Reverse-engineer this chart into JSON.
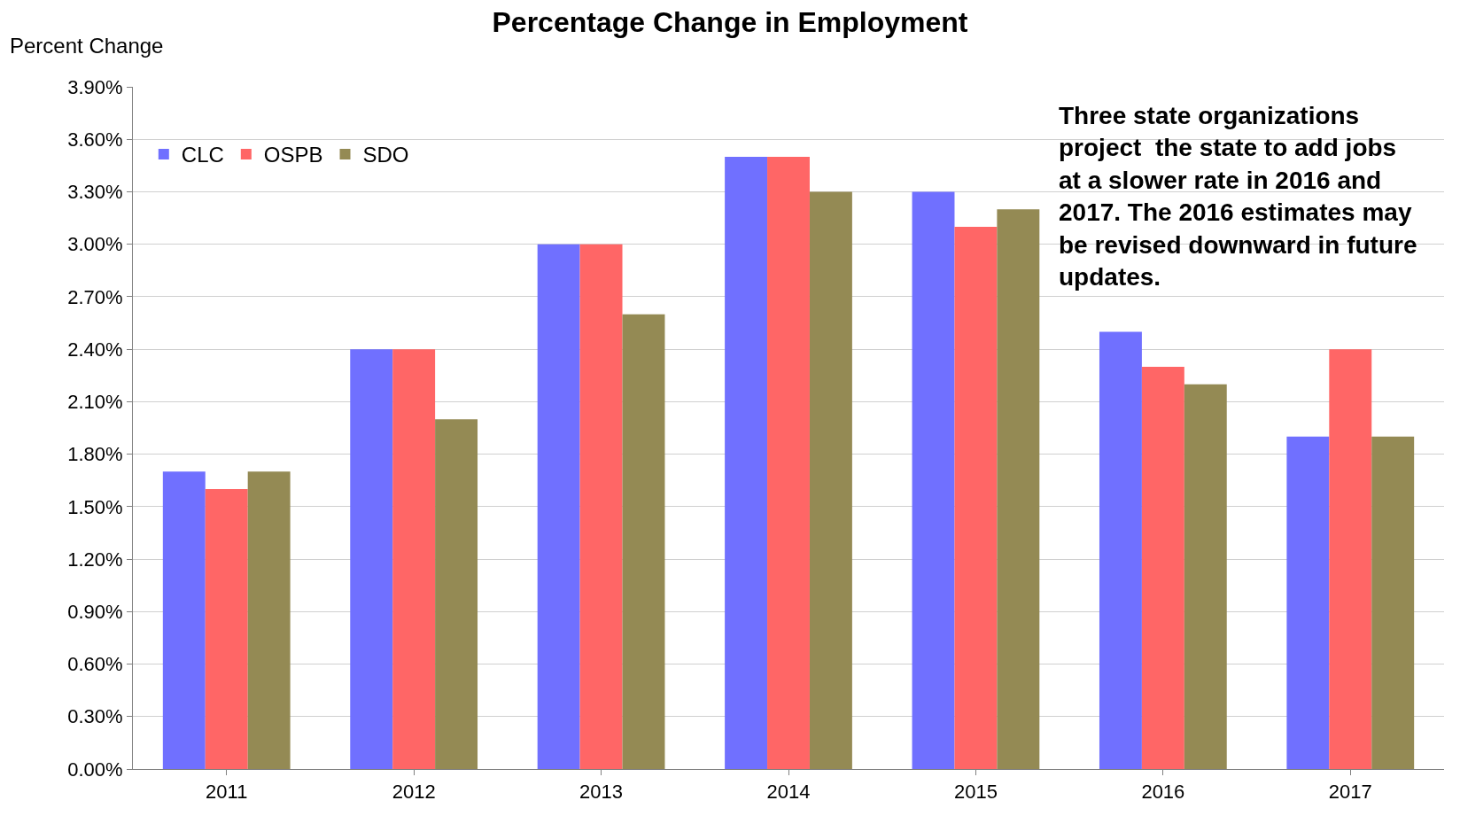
{
  "chart_data": {
    "type": "bar",
    "title": "Percentage Change in Employment",
    "ylabel": "Percent Change",
    "categories": [
      "2011",
      "2012",
      "2013",
      "2014",
      "2015",
      "2016",
      "2017"
    ],
    "series": [
      {
        "name": "CLC",
        "color": "#7070ff",
        "values": [
          1.7,
          2.4,
          3.0,
          3.5,
          3.3,
          2.5,
          1.9
        ]
      },
      {
        "name": "OSPB",
        "color": "#ff6666",
        "values": [
          1.6,
          2.4,
          3.0,
          3.5,
          3.1,
          2.3,
          2.4
        ]
      },
      {
        "name": "SDO",
        "color": "#948a54",
        "values": [
          1.7,
          2.0,
          2.6,
          3.3,
          3.2,
          2.2,
          1.9
        ]
      }
    ],
    "ylim": [
      0,
      3.9
    ],
    "yticks": [
      {
        "value": 0,
        "label": "0.00%"
      },
      {
        "value": 0.3,
        "label": "0.30%"
      },
      {
        "value": 0.6,
        "label": "0.60%"
      },
      {
        "value": 0.9,
        "label": "0.90%"
      },
      {
        "value": 1.2,
        "label": "1.20%"
      },
      {
        "value": 1.5,
        "label": "1.50%"
      },
      {
        "value": 1.8,
        "label": "1.80%"
      },
      {
        "value": 2.1,
        "label": "2.10%"
      },
      {
        "value": 2.4,
        "label": "2.40%"
      },
      {
        "value": 2.7,
        "label": "2.70%"
      },
      {
        "value": 3.0,
        "label": "3.00%"
      },
      {
        "value": 3.3,
        "label": "3.30%"
      },
      {
        "value": 3.6,
        "label": "3.60%"
      },
      {
        "value": 3.9,
        "label": "3.90%"
      }
    ],
    "grid": "y",
    "legend": "top left",
    "annotations": [
      "Three state organizations project  the state to add jobs at a slower rate in 2016 and 2017. The 2016 estimates may be revised downward in future updates."
    ]
  }
}
